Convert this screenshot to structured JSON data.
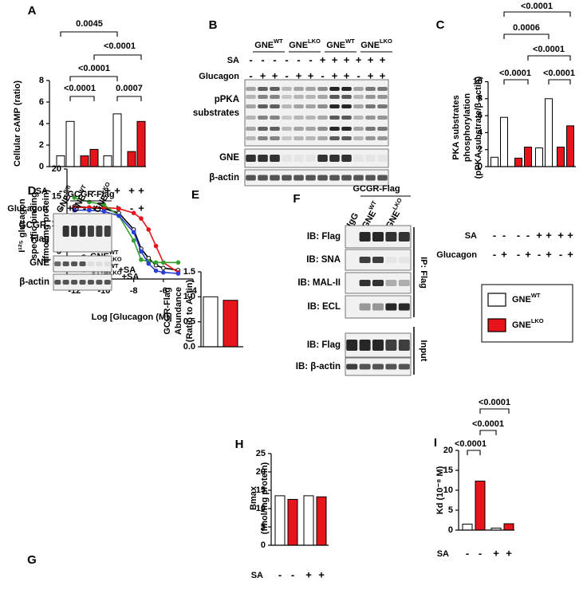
{
  "chart_data": [
    {
      "type": "bar",
      "panel": "A",
      "ylabel": [
        "Cellular cAMP (ratio)"
      ],
      "values": [
        1.0,
        4.2,
        1.0,
        1.6,
        1.0,
        4.9,
        1.4,
        4.2
      ],
      "colors": [
        "#ffffff",
        "#ffffff",
        "#e8141b",
        "#e8141b",
        "#ffffff",
        "#ffffff",
        "#e8141b",
        "#e8141b"
      ],
      "ylim": [
        0,
        8
      ],
      "yticks": [
        0,
        2,
        4,
        6,
        8
      ],
      "rows": [
        {
          "label": "SA",
          "signs": [
            "-",
            "-",
            "-",
            "-",
            "+",
            "+",
            "+",
            "+"
          ]
        },
        {
          "label": "Glucagon",
          "signs": [
            "-",
            "+",
            "-",
            "+",
            "-",
            "+",
            "-",
            "+"
          ]
        }
      ],
      "comparisons": [
        {
          "label": "0.0045"
        },
        {
          "label": "<0.0001"
        },
        {
          "label": "<0.0001"
        },
        {
          "label": "<0.0001"
        },
        {
          "label": "0.0007"
        }
      ]
    },
    {
      "type": "bar",
      "panel": "C",
      "ylabel": [
        "PKA substrates",
        "phosphorylation",
        "(pPKA substrate/β-actin)"
      ],
      "values": [
        1.1,
        5.8,
        1.0,
        2.3,
        2.2,
        8.0,
        2.3,
        4.8
      ],
      "colors": [
        "#ffffff",
        "#ffffff",
        "#e8141b",
        "#e8141b",
        "#ffffff",
        "#ffffff",
        "#e8141b",
        "#e8141b"
      ],
      "ylim": [
        0,
        10
      ],
      "yticks": [
        0,
        2,
        4,
        6,
        8,
        10
      ],
      "rows": [
        {
          "label": "SA",
          "signs": [
            "-",
            "-",
            "-",
            "-",
            "+",
            "+",
            "+",
            "+"
          ]
        },
        {
          "label": "Glucagon",
          "signs": [
            "-",
            "+",
            "-",
            "+",
            "-",
            "+",
            "-",
            "+"
          ]
        }
      ],
      "comparisons": [
        {
          "label": "<0.0001"
        },
        {
          "label": "0.0006"
        },
        {
          "label": "<0.0001"
        },
        {
          "label": "<0.0001"
        },
        {
          "label": "<0.0001"
        }
      ]
    },
    {
      "type": "bar",
      "panel": "E",
      "ylabel": [
        "GCGR-Flag",
        "Abundance",
        "(Ratio to Actin)"
      ],
      "values": [
        1.0,
        0.93
      ],
      "colors": [
        "#ffffff",
        "#e8141b"
      ],
      "ylim": [
        0,
        1.5
      ],
      "yticks": [
        {
          "value": 0,
          "label": "0.0"
        },
        {
          "value": 0.5,
          "label": "0.5"
        },
        {
          "value": 1.0,
          "label": "1.0"
        },
        {
          "value": 1.5,
          "label": "1.5"
        }
      ]
    },
    {
      "type": "line",
      "panel": "G",
      "ylabel": [
        "I¹²⁵ glucagon",
        "specific binding",
        "(fmol/mg protein)"
      ],
      "xlabel": "Log [Glucagon (M)]",
      "x": [
        -12,
        -11,
        -10,
        -9,
        -8,
        -7.5,
        -7,
        -6.5,
        -6,
        -5
      ],
      "xlim": [
        -12.5,
        -4
      ],
      "xticks": [
        -12,
        -10,
        -8,
        -6,
        -4
      ],
      "ylim": [
        0,
        20
      ],
      "yticks": [
        0,
        5,
        10,
        15,
        20
      ],
      "series": [
        {
          "name": {
            "base": "GNE",
            "sup": "WT"
          },
          "color": "#000000",
          "values": [
            13.2,
            13.0,
            12.8,
            12.0,
            9.0,
            5.5,
            3.8,
            2.5,
            2.0,
            1.6
          ]
        },
        {
          "name": {
            "base": "GNE",
            "sup": "LKO"
          },
          "color": "#e8141b",
          "values": [
            13.0,
            13.0,
            13.0,
            12.8,
            12.0,
            11.0,
            9.0,
            6.0,
            3.0,
            1.2
          ]
        },
        {
          "name": {
            "base": "GNE",
            "sup": "WT",
            "suffix": "+SA"
          },
          "color": "#33a02c",
          "values": [
            14.8,
            14.0,
            13.5,
            11.5,
            7.0,
            3.5,
            3.2,
            3.0,
            3.0,
            3.0
          ]
        },
        {
          "name": {
            "base": "GNE",
            "sup": "LKO",
            "suffix": "+SA"
          },
          "color": "#2b3fd6",
          "values": [
            12.5,
            12.5,
            12.3,
            11.5,
            8.5,
            5.0,
            2.8,
            1.5,
            1.2,
            1.0
          ]
        }
      ]
    },
    {
      "type": "bar",
      "panel": "H",
      "ylabel": [
        "Bmax",
        "(fmol/mg protein)"
      ],
      "values": [
        13.5,
        12.5,
        13.5,
        13.2
      ],
      "colors": [
        "#ffffff",
        "#e8141b",
        "#ffffff",
        "#e8141b"
      ],
      "ylim": [
        0,
        25
      ],
      "yticks": [
        0,
        5,
        10,
        15,
        20,
        25
      ],
      "rows": [
        {
          "label": "SA",
          "signs": [
            "-",
            "-",
            "+",
            "+"
          ]
        }
      ]
    },
    {
      "type": "bar",
      "panel": "I",
      "ylabel": [
        "Kd (10⁻⁸ M)"
      ],
      "values": [
        1.5,
        12.3,
        0.5,
        1.6
      ],
      "colors": [
        "#ffffff",
        "#e8141b",
        "#ffffff",
        "#e8141b"
      ],
      "ylim": [
        0,
        20
      ],
      "yticks": [
        0,
        5,
        10,
        15,
        20
      ],
      "rows": [
        {
          "label": "SA",
          "signs": [
            "-",
            "-",
            "+",
            "+"
          ]
        }
      ],
      "comparisons": [
        {
          "label": "<0.0001"
        },
        {
          "label": "<0.0001"
        },
        {
          "label": "<0.0001"
        }
      ]
    }
  ],
  "blots": {
    "B": {
      "panel": "B",
      "groups": [
        {
          "base": "GNE",
          "sup": "WT"
        },
        {
          "base": "GNE",
          "sup": "LKO"
        },
        {
          "base": "GNE",
          "sup": "WT"
        },
        {
          "base": "GNE",
          "sup": "LKO"
        }
      ],
      "rows": [
        {
          "label": "SA",
          "signs": [
            "-",
            "-",
            "-",
            "-",
            "-",
            "-",
            "+",
            "+",
            "+",
            "+",
            "+",
            "+"
          ]
        },
        {
          "label": "Glucagon",
          "signs": [
            "-",
            "+",
            "+",
            "-",
            "+",
            "+",
            "-",
            "+",
            "+",
            "-",
            "+",
            "+"
          ]
        }
      ],
      "bands": [
        [
          "pPKA",
          "substrates"
        ],
        [
          "GNE"
        ],
        [
          "β-actin"
        ]
      ]
    },
    "D": {
      "panel": "D",
      "header": "GCGR-Flag",
      "lanes": [
        {
          "base": "GNE",
          "sup": "fl/fl"
        },
        {
          "base": "GNE",
          "sup": "WT"
        },
        {
          "base": "GNE",
          "sup": "LKO"
        }
      ],
      "bands": [
        [
          "GCGR-",
          "Flag"
        ],
        [
          "GNE"
        ],
        [
          "β-actin"
        ]
      ]
    },
    "F": {
      "panel": "F",
      "header": "GCGR-Flag",
      "lanes": [
        "IgG",
        {
          "base": "GNE",
          "sup": "WT"
        },
        {
          "base": "GNE",
          "sup": "LKO"
        }
      ],
      "bands": [
        "IB: Flag",
        "IB: SNA",
        "IB: MAL-II",
        "IB: ECL",
        "IB: Flag",
        "IB: β-actin"
      ],
      "sides": [
        "IP: Flag",
        "Input"
      ]
    }
  },
  "legend": {
    "entries": [
      {
        "label": {
          "base": "GNE",
          "sup": "WT"
        },
        "color": "#ffffff"
      },
      {
        "label": {
          "base": "GNE",
          "sup": "LKO"
        },
        "color": "#e8141b"
      }
    ]
  }
}
